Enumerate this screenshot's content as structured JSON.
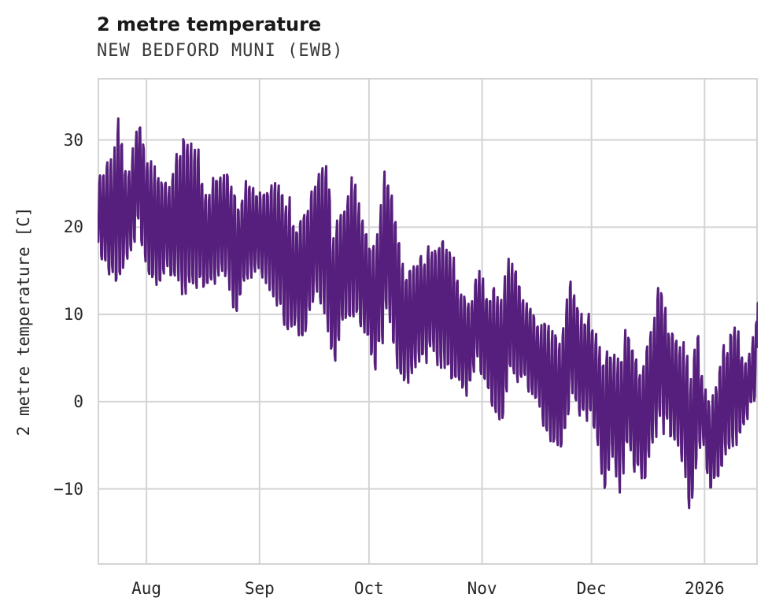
{
  "header": {
    "title": "2 metre temperature",
    "subtitle": "NEW BEDFORD MUNI (EWB)"
  },
  "chart_data": {
    "type": "line",
    "title": "2 metre temperature",
    "subtitle": "NEW BEDFORD MUNI (EWB)",
    "station": "NEW BEDFORD MUNI (EWB)",
    "ylabel": "2 metre temperature [C]",
    "xlabel": "",
    "units": "C",
    "legend_position": "none",
    "grid": true,
    "line_color": "#571f7d",
    "grid_color": "#d4d4d4",
    "background_color": "#ffffff",
    "x_start_date": "2025-07-19",
    "x_end_date": "2026-01-15",
    "x_domain_days": [
      0,
      181
    ],
    "y_range": [
      -18.7,
      37.1
    ],
    "y_ticks": [
      {
        "label": "30",
        "value": 30
      },
      {
        "label": "20",
        "value": 20
      },
      {
        "label": "10",
        "value": 10
      },
      {
        "label": "0",
        "value": 0
      },
      {
        "label": "−10",
        "value": -10
      }
    ],
    "x_ticks": [
      {
        "label": "Aug",
        "day": 13.4
      },
      {
        "label": "Sep",
        "day": 44.4
      },
      {
        "label": "Oct",
        "day": 74.4
      },
      {
        "label": "Nov",
        "day": 105.4
      },
      {
        "label": "Dec",
        "day": 135.4
      },
      {
        "label": "2026",
        "day": 166.4
      }
    ],
    "samples_per_day": 6,
    "noise_seed": 7,
    "notable_points": {
      "max_c": 34.5,
      "max_date": "2025-07-31",
      "min_c": -16.5,
      "min_date": "2025-12-28",
      "last_value_c": 11.3
    },
    "daily_envelope_keyframes": [
      [
        0,
        17,
        27
      ],
      [
        3,
        14,
        27.5
      ],
      [
        6,
        13,
        32.3
      ],
      [
        8,
        15.5,
        26
      ],
      [
        10,
        17.5,
        29.5
      ],
      [
        11,
        19.5,
        34.5
      ],
      [
        13,
        15,
        29
      ],
      [
        16,
        11.7,
        27.3
      ],
      [
        19,
        15,
        25
      ],
      [
        21,
        14,
        26.5
      ],
      [
        23.5,
        10.6,
        33.1
      ],
      [
        25,
        12.6,
        30
      ],
      [
        28,
        12,
        28.9
      ],
      [
        30,
        11.7,
        24
      ],
      [
        32,
        13.5,
        26
      ],
      [
        34,
        13.8,
        27.2
      ],
      [
        36,
        12.6,
        27.8
      ],
      [
        38,
        8.7,
        23
      ],
      [
        40,
        13,
        24.5
      ],
      [
        43,
        14,
        25.5
      ],
      [
        47,
        13.5,
        24.5
      ],
      [
        50,
        9,
        26
      ],
      [
        54,
        7.2,
        21
      ],
      [
        57,
        6.5,
        23
      ],
      [
        60,
        12,
        26.5
      ],
      [
        63,
        9,
        27.8
      ],
      [
        64.5,
        2.7,
        19
      ],
      [
        67,
        8,
        22
      ],
      [
        70,
        9.5,
        26.8
      ],
      [
        73,
        8,
        20
      ],
      [
        76,
        3,
        18
      ],
      [
        79.5,
        10,
        28
      ],
      [
        82,
        4,
        20
      ],
      [
        84,
        1.1,
        15
      ],
      [
        88,
        4.2,
        17.3
      ],
      [
        92,
        4.8,
        18.5
      ],
      [
        96,
        2.7,
        19.5
      ],
      [
        99,
        1.5,
        13.5
      ],
      [
        102,
        1.1,
        11
      ],
      [
        104,
        5,
        15.4
      ],
      [
        107,
        -0.6,
        14
      ],
      [
        111,
        -2.8,
        13
      ],
      [
        113,
        3,
        16.9
      ],
      [
        117,
        2,
        12
      ],
      [
        120,
        0,
        10
      ],
      [
        124,
        -5,
        9
      ],
      [
        127,
        -6.3,
        8
      ],
      [
        130,
        0,
        14.3
      ],
      [
        133,
        -3,
        10
      ],
      [
        135,
        -2,
        11.1
      ],
      [
        139,
        -10.5,
        5
      ],
      [
        141,
        -7,
        7
      ],
      [
        143,
        -11.7,
        6
      ],
      [
        145,
        -6.9,
        9.9
      ],
      [
        148,
        -8.7,
        5
      ],
      [
        150,
        -10.2,
        5
      ],
      [
        152,
        -6.3,
        10
      ],
      [
        154,
        -2.4,
        13.8
      ],
      [
        157,
        -4.5,
        8.8
      ],
      [
        159,
        -5,
        7.5
      ],
      [
        161,
        -7.8,
        6.5
      ],
      [
        162.5,
        -16.5,
        4
      ],
      [
        164,
        -8,
        9.9
      ],
      [
        166,
        -4.8,
        2
      ],
      [
        168,
        -11.6,
        0.5
      ],
      [
        170,
        -8.8,
        3.4
      ],
      [
        173,
        -6.1,
        8.3
      ],
      [
        175,
        -5.7,
        11.1
      ],
      [
        177,
        -3.3,
        4.5
      ],
      [
        179,
        -1,
        6
      ],
      [
        181,
        0,
        11.3
      ]
    ]
  }
}
